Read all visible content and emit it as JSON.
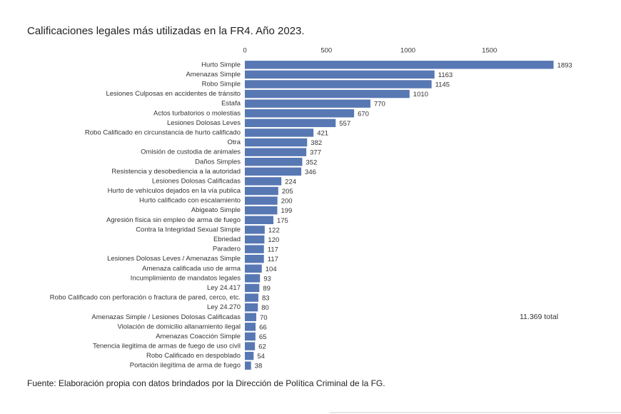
{
  "chart_data": {
    "type": "bar",
    "orientation": "horizontal",
    "title": "Calificaciones legales más utilizadas en la FR4. Año 2023.",
    "categories": [
      "Hurto Simple",
      "Amenazas Simple",
      "Robo Simple",
      "Lesiones Culposas en accidentes de tránsito",
      "Estafa",
      "Actos turbatorios o molestias",
      "Lesiones Dolosas Leves",
      "Robo Calificado en circunstancia de hurto calificado",
      "Otra",
      "Omisión de custodia de animales",
      "Daños Simples",
      "Resistencia y desobediencia a la autoridad",
      "Lesiones Dolosas Calificadas",
      "Hurto de vehículos dejados en la vía publica",
      "Hurto calificado con escalamiento",
      "Abigeato Simple",
      "Agresión física sin empleo de arma de fuego",
      "Contra la Integridad Sexual Simple",
      "Ebriedad",
      "Paradero",
      "Lesiones Dolosas Leves / Amenazas Simple",
      "Amenaza calificada uso de arma",
      "Incumplimiento de mandatos legales",
      "Ley 24.417",
      "Robo Calificado con perforación o fractura de pared, cerco, etc.",
      "Ley 24.270",
      "Amenazas Simple / Lesiones Dolosas Calificadas",
      "Violación de domicilio allanamiento ilegal",
      "Amenazas Coacción Simple",
      "Tenencia ilegitima de armas de fuego de uso civil",
      "Robo Calificado en despoblado",
      "Portación ilegítima de arma de fuego"
    ],
    "values": [
      1893,
      1163,
      1145,
      1010,
      770,
      670,
      557,
      421,
      382,
      377,
      352,
      346,
      224,
      205,
      200,
      199,
      175,
      122,
      120,
      117,
      117,
      104,
      93,
      89,
      83,
      80,
      70,
      66,
      65,
      62,
      54,
      38
    ],
    "color": "#5878b4",
    "xlim": [
      0,
      2000
    ],
    "xticks": [
      0,
      500,
      1000,
      1500
    ],
    "annotation": "11.369 total",
    "source": "Fuente: Elaboración propia con datos brindados por la Dirección de Política Criminal de la FG."
  }
}
